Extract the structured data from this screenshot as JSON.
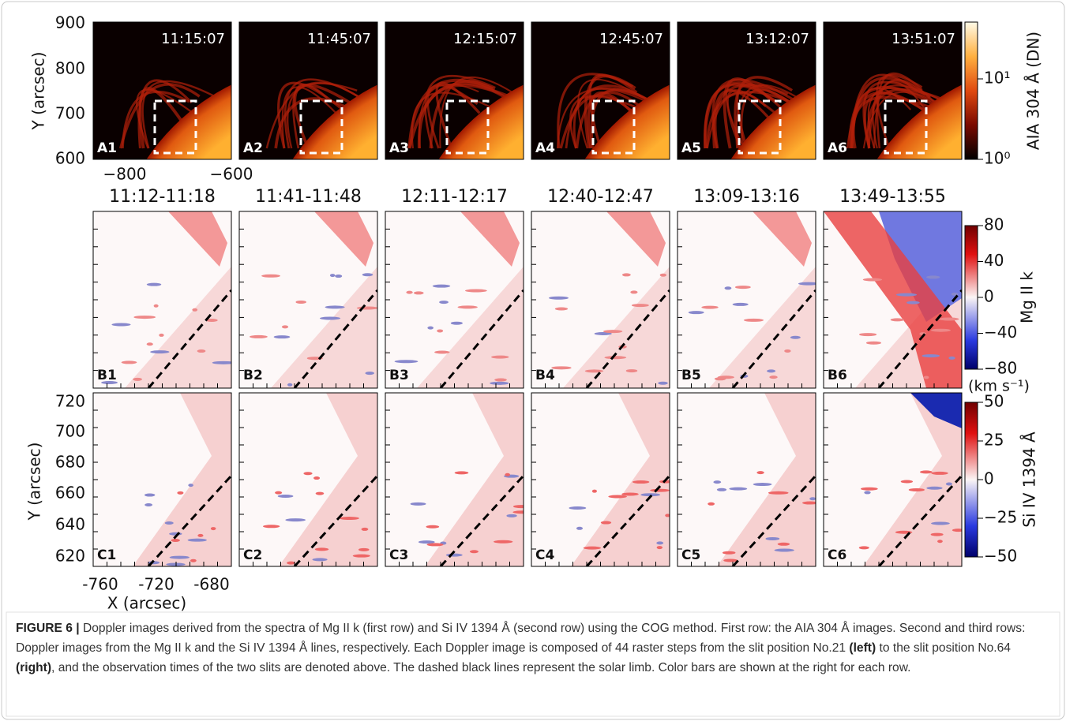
{
  "panels_a": [
    {
      "label": "A1",
      "time": "11:15:07"
    },
    {
      "label": "A2",
      "time": "11:45:07"
    },
    {
      "label": "A3",
      "time": "12:15:07"
    },
    {
      "label": "A4",
      "time": "12:45:07"
    },
    {
      "label": "A5",
      "time": "13:12:07"
    },
    {
      "label": "A6",
      "time": "13:51:07"
    }
  ],
  "panels_b": [
    {
      "label": "B1",
      "title": "11:12-11:18"
    },
    {
      "label": "B2",
      "title": "11:41-11:48"
    },
    {
      "label": "B3",
      "title": "12:11-12:17"
    },
    {
      "label": "B4",
      "title": "12:40-12:47"
    },
    {
      "label": "B5",
      "title": "13:09-13:16"
    },
    {
      "label": "B6",
      "title": "13:49-13:55"
    }
  ],
  "panels_c": [
    "C1",
    "C2",
    "C3",
    "C4",
    "C5",
    "C6"
  ],
  "axes": {
    "a_ylabel": "Y (arcsec)",
    "a_yticks": [
      "900",
      "800",
      "700",
      "600"
    ],
    "a_xticks": [
      "−800",
      "−600"
    ],
    "c_ylabel": "Y (arcsec)",
    "c_yticks": [
      "720",
      "700",
      "680",
      "660",
      "640",
      "620"
    ],
    "c_xticks": [
      "-760",
      "-720",
      "-680"
    ],
    "c_xlabel": "X (arcsec)"
  },
  "colorbars": {
    "a": {
      "label": "AIA 304 Å (DN)",
      "ticks": [
        "10¹",
        "10⁰"
      ]
    },
    "b": {
      "label": "Mg II k",
      "ticks": [
        "80",
        "40",
        "0",
        "−40",
        "−80"
      ],
      "unit": "(km s⁻¹)"
    },
    "c": {
      "label": "Si IV 1394 Å",
      "ticks": [
        "50",
        "25",
        "0",
        "−25",
        "−50"
      ]
    }
  },
  "caption": {
    "label": "FIGURE 6 |",
    "text_1": " Doppler images derived from the spectra of Mg II k (first row) and Si IV 1394 Å (second row) using the COG method. First row: the AIA 304 Å images. Second and third rows: Doppler images from the Mg II k and the Si IV 1394 Å lines, respectively. Each Doppler image is composed of 44 raster steps from the slit position No.21 ",
    "bold_1": "(left)",
    "text_2": " to the slit position No.64 ",
    "bold_2": "(right)",
    "text_3": ", and the observation times of the two slits are denoted above. The dashed black lines represent the solar limb. Color bars are shown at the right for each row."
  }
}
